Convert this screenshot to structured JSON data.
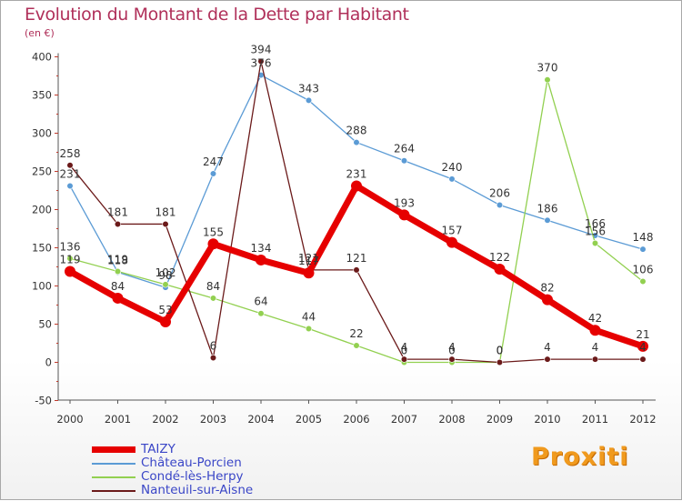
{
  "title": "Evolution du Montant de la Dette par Habitant",
  "unit": "(en €)",
  "logo": "Proxiti",
  "chart_data": {
    "type": "line",
    "title": "Evolution du Montant de la Dette par Habitant",
    "ylabel": "(en €)",
    "x": [
      "2000",
      "2001",
      "2002",
      "2003",
      "2004",
      "2005",
      "2006",
      "2007",
      "2008",
      "2009",
      "2010",
      "2011",
      "2012"
    ],
    "ylim": [
      -50,
      400
    ],
    "yticks": [
      -50,
      0,
      50,
      100,
      150,
      200,
      250,
      300,
      350,
      400
    ],
    "grid": false,
    "legend": "bottom-left",
    "series": [
      {
        "name": "TAIZY",
        "color": "#e60000",
        "values": [
          119,
          84,
          53,
          155,
          134,
          117,
          231,
          193,
          157,
          122,
          82,
          42,
          21
        ]
      },
      {
        "name": "Château-Porcien",
        "color": "#5b9bd5",
        "values": [
          231,
          118,
          98,
          247,
          376,
          343,
          288,
          264,
          240,
          206,
          186,
          166,
          148
        ]
      },
      {
        "name": "Condé-lès-Herpy",
        "color": "#92d050",
        "values": [
          136,
          119,
          102,
          84,
          64,
          44,
          22,
          0,
          0,
          0,
          370,
          156,
          106
        ]
      },
      {
        "name": "Nanteuil-sur-Aisne",
        "color": "#6b1a1a",
        "values": [
          258,
          181,
          181,
          6,
          394,
          121,
          121,
          4,
          4,
          0,
          4,
          4,
          4
        ]
      }
    ],
    "data_labels": [
      [
        "119",
        "84",
        "53",
        "155",
        "134",
        "117",
        "231",
        "193",
        "157",
        "122",
        "82",
        "42",
        "21"
      ],
      [
        "231",
        "118",
        "98",
        "247",
        "376",
        "343",
        "288",
        "264",
        "240",
        "206",
        "186",
        "166",
        "148"
      ],
      [
        "136",
        "119",
        "102",
        "84",
        "64",
        "44",
        "22",
        "0",
        "0",
        "0",
        "370",
        "156",
        "106"
      ],
      [
        "258",
        "181",
        "181",
        "6",
        "394",
        "121",
        "121",
        "4",
        "4",
        "0",
        "4",
        "4",
        "4"
      ]
    ]
  }
}
